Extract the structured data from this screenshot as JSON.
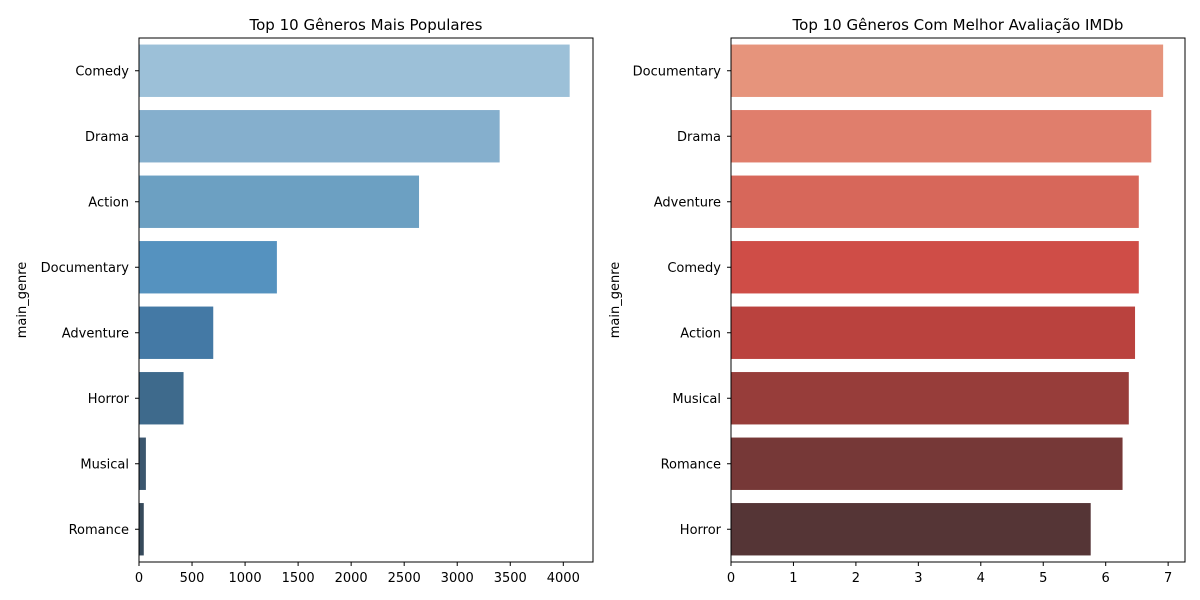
{
  "chart_data": [
    {
      "type": "bar",
      "orientation": "horizontal",
      "title": "Top 10 Gêneros Mais Populares",
      "xlabel": "",
      "ylabel": "main_genre",
      "categories": [
        "Comedy",
        "Drama",
        "Action",
        "Documentary",
        "Adventure",
        "Horror",
        "Musical",
        "Romance"
      ],
      "values": [
        4060,
        3400,
        2640,
        1300,
        700,
        420,
        65,
        45
      ],
      "colors": [
        "#9cc0d8",
        "#85afcd",
        "#6ca0c2",
        "#5592bf",
        "#4479a5",
        "#3e6a8c",
        "#3b566e",
        "#364a5b"
      ],
      "xlim": [
        0,
        4280
      ],
      "xticks": [
        0,
        500,
        1000,
        1500,
        2000,
        2500,
        3000,
        3500,
        4000
      ],
      "grid": false
    },
    {
      "type": "bar",
      "orientation": "horizontal",
      "title": "Top 10 Gêneros Com Melhor Avaliação IMDb",
      "xlabel": "",
      "ylabel": "main_genre",
      "categories": [
        "Documentary",
        "Drama",
        "Adventure",
        "Comedy",
        "Action",
        "Musical",
        "Romance",
        "Horror"
      ],
      "values": [
        6.92,
        6.73,
        6.53,
        6.53,
        6.47,
        6.37,
        6.27,
        5.76
      ],
      "colors": [
        "#e6947c",
        "#e07e6c",
        "#d7675a",
        "#cf4d47",
        "#ba423e",
        "#973d3a",
        "#763837",
        "#553536"
      ],
      "xlim": [
        0,
        7.27
      ],
      "xticks": [
        0,
        1,
        2,
        3,
        4,
        5,
        6,
        7
      ],
      "grid": false
    }
  ]
}
